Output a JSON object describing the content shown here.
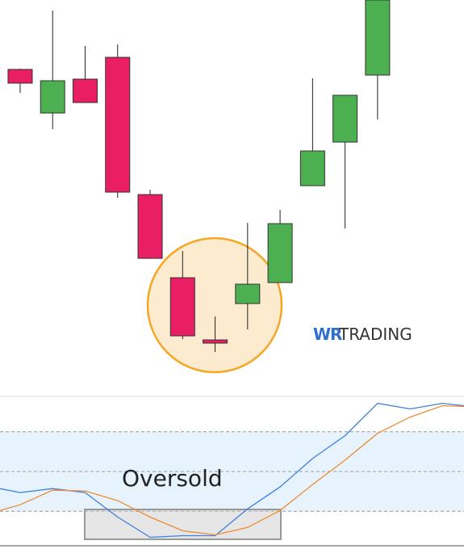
{
  "logo": {
    "mark": "WR",
    "text": "TRADING"
  },
  "chart_data": [
    {
      "type": "candlestick",
      "x": [
        0,
        1,
        2,
        3,
        4,
        5,
        6,
        7,
        8,
        9,
        10,
        11
      ],
      "open": [
        394,
        340,
        382,
        409,
        239,
        136,
        59,
        104,
        130,
        250,
        304,
        387
      ],
      "high": [
        395,
        467,
        423,
        425,
        245,
        169,
        88,
        204,
        220,
        383,
        362,
        480
      ],
      "low": [
        365,
        320,
        353,
        235,
        160,
        60,
        44,
        72,
        130,
        250,
        197,
        332
      ],
      "close": [
        377,
        380,
        353,
        242,
        160,
        64,
        55,
        128,
        203,
        293,
        362,
        480
      ],
      "up_color": "#4caf50",
      "down_color": "#e91e63",
      "ylim": [
        -10,
        480
      ],
      "xlim": [
        -0.62,
        13.66
      ]
    },
    {
      "type": "line",
      "annotation": "Oversold",
      "x": [
        -0.62,
        0,
        1,
        2,
        3,
        4,
        5,
        6,
        7,
        8,
        9,
        10,
        11,
        12,
        13,
        13.66
      ],
      "series": [
        {
          "color": "#3f7fe0",
          "values": [
            37.1,
            34.1,
            37.1,
            34.1,
            15.7,
            0.4,
            1.6,
            1.6,
            21.8,
            38.4,
            59.8,
            77.0,
            101.4,
            97.2,
            101.4,
            99.6
          ]
        },
        {
          "color": "#f08a30",
          "values": [
            20.6,
            24.9,
            35.9,
            35.3,
            28.0,
            15.7,
            5.3,
            2.2,
            7.8,
            20.6,
            40.2,
            58.6,
            78.8,
            91.0,
            99.6,
            99.0
          ]
        }
      ],
      "levels": [
        20,
        50,
        80
      ],
      "band_color": "#e6f3fd",
      "ylim": [
        -6,
        106
      ],
      "xlim": [
        -0.62,
        13.66
      ]
    }
  ]
}
